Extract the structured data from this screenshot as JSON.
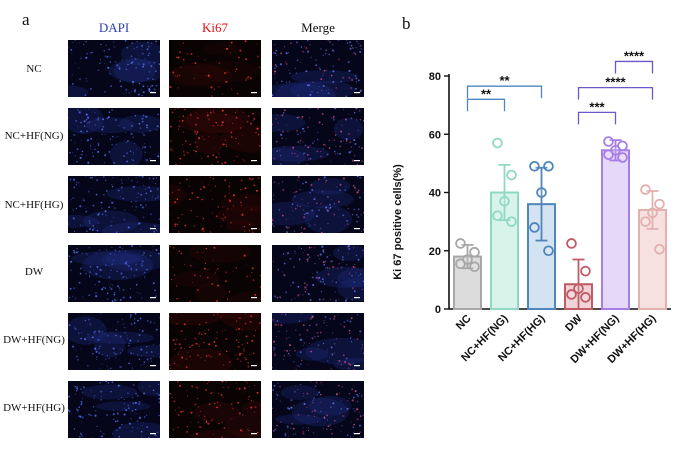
{
  "panel_a": {
    "letter": "a",
    "columns": [
      {
        "label": "DAPI",
        "color": "#2a3fb5"
      },
      {
        "label": "Ki67",
        "color": "#e01010"
      },
      {
        "label": "Merge",
        "color": "#111111"
      }
    ],
    "rows": [
      "NC",
      "NC+HF(NG)",
      "NC+HF(HG)",
      "DW",
      "DW+HF(NG)",
      "DW+HF(HG)"
    ],
    "ki67_intensity": [
      0.25,
      0.75,
      0.6,
      0.2,
      0.85,
      0.7
    ]
  },
  "panel_b": {
    "letter": "b"
  },
  "chart_data": {
    "type": "bar",
    "ylabel": "Ki 67 positive cells(%)",
    "ylim": [
      0,
      80
    ],
    "yticks": [
      0,
      20,
      40,
      60,
      80
    ],
    "categories": [
      "NC",
      "NC+HF(NG)",
      "NC+HF(HG)",
      "DW",
      "DW+HF(NG)",
      "DW+HF(HG)"
    ],
    "values": [
      18,
      40,
      36,
      8.5,
      54.5,
      34
    ],
    "errors": [
      4,
      9.5,
      12.5,
      8.5,
      3.5,
      6.5
    ],
    "points": [
      [
        22.5,
        19.5,
        17,
        15.5,
        14.5
      ],
      [
        57,
        46,
        37,
        32,
        30
      ],
      [
        49,
        49,
        40,
        28,
        20
      ],
      [
        22.5,
        13,
        7,
        5,
        4
      ],
      [
        57.5,
        56,
        54.5,
        53,
        52
      ],
      [
        41,
        36,
        33,
        30,
        20.5
      ]
    ],
    "colors": [
      "#a7a7a7",
      "#8fd9c4",
      "#4f86bd",
      "#c05b66",
      "#a77ee6",
      "#e2b0ae"
    ],
    "fill_colors": [
      "#dcdcdc",
      "#d8f3ea",
      "#d3e3f1",
      "#f0d3d6",
      "#e6d8f8",
      "#f6e1e0"
    ],
    "significance": [
      {
        "from": 0,
        "to": 1,
        "label": "**",
        "y": 72
      },
      {
        "from": 0,
        "to": 2,
        "label": "**",
        "y": 76.5
      },
      {
        "from": 3,
        "to": 4,
        "label": "***",
        "y": 67.5
      },
      {
        "from": 3,
        "to": 5,
        "label": "****",
        "y": 76
      },
      {
        "from": 4,
        "to": 5,
        "label": "****",
        "y": 85
      }
    ],
    "bracket_colors": [
      "#4f86bd",
      "#7057c9"
    ]
  }
}
